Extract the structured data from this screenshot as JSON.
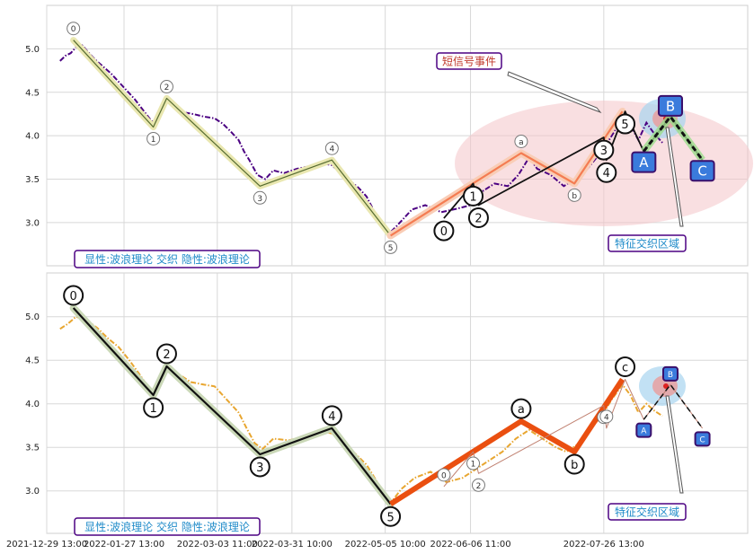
{
  "chart_data": [
    {
      "type": "line",
      "panel": "top",
      "ylim": [
        2.5,
        5.5
      ],
      "y_ticks": [
        "3.0",
        "3.5",
        "4.0",
        "4.5",
        "5.0"
      ],
      "grid": true,
      "caption": "显性:波浪理论 交织 隐性:波浪理论",
      "callouts": [
        "短信号事件",
        "特征交织区域"
      ],
      "series": [
        {
          "role": "price",
          "color": "#4b0082",
          "style": "dash-dot",
          "points": [
            [
              "2022-01-03",
              4.86
            ],
            [
              "2022-01-05",
              4.92
            ],
            [
              "2022-01-07",
              4.95
            ],
            [
              "2022-01-09",
              5.02
            ],
            [
              "2022-01-11",
              5.05
            ],
            [
              "2022-01-13",
              4.98
            ],
            [
              "2022-01-16",
              4.88
            ],
            [
              "2022-01-19",
              4.8
            ],
            [
              "2022-01-22",
              4.72
            ],
            [
              "2022-01-25",
              4.62
            ],
            [
              "2022-01-28",
              4.52
            ],
            [
              "2022-01-31",
              4.42
            ],
            [
              "2022-02-03",
              4.3
            ],
            [
              "2022-02-06",
              4.18
            ],
            [
              "2022-02-08",
              4.12
            ],
            [
              "2022-02-10",
              4.28
            ],
            [
              "2022-02-12",
              4.4
            ],
            [
              "2022-02-15",
              4.32
            ],
            [
              "2022-02-18",
              4.27
            ],
            [
              "2022-02-22",
              4.25
            ],
            [
              "2022-02-26",
              4.22
            ],
            [
              "2022-03-02",
              4.2
            ],
            [
              "2022-03-05",
              4.14
            ],
            [
              "2022-03-08",
              4.05
            ],
            [
              "2022-03-11",
              3.95
            ],
            [
              "2022-03-13",
              3.82
            ],
            [
              "2022-03-15",
              3.72
            ],
            [
              "2022-03-18",
              3.55
            ],
            [
              "2022-03-21",
              3.5
            ],
            [
              "2022-03-24",
              3.6
            ],
            [
              "2022-03-28",
              3.57
            ],
            [
              "2022-04-02",
              3.62
            ],
            [
              "2022-04-07",
              3.65
            ],
            [
              "2022-04-12",
              3.68
            ],
            [
              "2022-04-15",
              3.66
            ],
            [
              "2022-04-18",
              3.58
            ],
            [
              "2022-04-21",
              3.5
            ],
            [
              "2022-04-25",
              3.4
            ],
            [
              "2022-04-28",
              3.3
            ],
            [
              "2022-05-01",
              3.12
            ],
            [
              "2022-05-04",
              3.0
            ],
            [
              "2022-05-06",
              2.86
            ],
            [
              "2022-05-09",
              2.95
            ],
            [
              "2022-05-12",
              3.05
            ],
            [
              "2022-05-15",
              3.15
            ],
            [
              "2022-05-20",
              3.2
            ],
            [
              "2022-05-26",
              3.12
            ],
            [
              "2022-06-01",
              3.16
            ],
            [
              "2022-06-06",
              3.2
            ],
            [
              "2022-06-10",
              3.35
            ],
            [
              "2022-06-15",
              3.45
            ],
            [
              "2022-06-20",
              3.42
            ],
            [
              "2022-06-24",
              3.55
            ],
            [
              "2022-06-28",
              3.75
            ],
            [
              "2022-07-01",
              3.62
            ],
            [
              "2022-07-06",
              3.55
            ],
            [
              "2022-07-11",
              3.42
            ],
            [
              "2022-07-14",
              3.48
            ],
            [
              "2022-07-18",
              3.55
            ],
            [
              "2022-07-22",
              3.7
            ],
            [
              "2022-07-26",
              3.85
            ],
            [
              "2022-07-30",
              4.05
            ],
            [
              "2022-08-02",
              4.25
            ],
            [
              "2022-08-05",
              4.12
            ],
            [
              "2022-08-08",
              3.95
            ],
            [
              "2022-08-11",
              4.15
            ],
            [
              "2022-08-14",
              4.02
            ],
            [
              "2022-08-17",
              3.92
            ]
          ]
        },
        {
          "role": "wave",
          "color": "#556b2f",
          "points": [
            [
              "2022-01-08",
              5.1
            ],
            [
              "2022-02-07",
              4.1
            ],
            [
              "2022-02-12",
              4.43
            ],
            [
              "2022-03-19",
              3.42
            ],
            [
              "2022-04-15",
              3.72
            ],
            [
              "2022-05-07",
              2.85
            ]
          ]
        },
        {
          "role": "wave",
          "color": "#f47c52",
          "points": [
            [
              "2022-05-07",
              2.85
            ],
            [
              "2022-06-25",
              3.8
            ],
            [
              "2022-07-15",
              3.45
            ],
            [
              "2022-08-02",
              4.28
            ]
          ]
        },
        {
          "role": "wave",
          "color": "#111111",
          "points": [
            [
              "2022-05-27",
              3.05
            ],
            [
              "2022-06-07",
              3.45
            ],
            [
              "2022-06-09",
              3.2
            ],
            [
              "2022-07-26",
              3.98
            ],
            [
              "2022-07-27",
              3.72
            ],
            [
              "2022-08-03",
              4.28
            ],
            [
              "2022-08-10",
              3.82
            ],
            [
              "2022-08-20",
              4.22
            ],
            [
              "2022-09-01",
              3.72
            ]
          ]
        }
      ],
      "wave_labels": [
        {
          "label": "0",
          "x": "2022-01-08",
          "y": 5.1,
          "style": "small"
        },
        {
          "label": "1",
          "x": "2022-02-07",
          "y": 4.1,
          "style": "small"
        },
        {
          "label": "2",
          "x": "2022-02-12",
          "y": 4.43,
          "style": "small"
        },
        {
          "label": "3",
          "x": "2022-03-19",
          "y": 3.42,
          "style": "small"
        },
        {
          "label": "4",
          "x": "2022-04-15",
          "y": 3.72,
          "style": "small"
        },
        {
          "label": "5",
          "x": "2022-05-07",
          "y": 2.85,
          "style": "small"
        },
        {
          "label": "a",
          "x": "2022-06-25",
          "y": 3.8,
          "style": "small"
        },
        {
          "label": "b",
          "x": "2022-07-15",
          "y": 3.45,
          "style": "small"
        },
        {
          "label": "0",
          "x": "2022-05-27",
          "y": 3.05,
          "style": "big"
        },
        {
          "label": "1",
          "x": "2022-06-07",
          "y": 3.45,
          "style": "big"
        },
        {
          "label": "2",
          "x": "2022-06-09",
          "y": 3.2,
          "style": "big"
        },
        {
          "label": "3",
          "x": "2022-07-26",
          "y": 3.98,
          "style": "big"
        },
        {
          "label": "4",
          "x": "2022-07-27",
          "y": 3.72,
          "style": "big"
        },
        {
          "label": "5",
          "x": "2022-08-03",
          "y": 4.28,
          "style": "big"
        },
        {
          "label": "A",
          "x": "2022-08-10",
          "y": 3.82,
          "style": "box"
        },
        {
          "label": "B",
          "x": "2022-08-20",
          "y": 4.22,
          "style": "box"
        },
        {
          "label": "C",
          "x": "2022-09-01",
          "y": 3.72,
          "style": "box"
        }
      ]
    },
    {
      "type": "line",
      "panel": "bottom",
      "ylim": [
        2.5,
        5.5
      ],
      "y_ticks": [
        "3.0",
        "3.5",
        "4.0",
        "4.5",
        "5.0"
      ],
      "x_ticks": [
        "2021-12-29 13:00",
        "2022-01-27 13:00",
        "2022-03-03 11:00",
        "2022-03-31 10:00",
        "2022-05-05 10:00",
        "2022-06-06 11:00",
        "2022-07-26 13:00"
      ],
      "grid": true,
      "caption": "显性:波浪理论 交织 隐性:波浪理论",
      "callouts": [
        "特征交织区域"
      ],
      "series": [
        {
          "role": "price",
          "color": "#e8a630",
          "style": "dash-dot",
          "points": [
            [
              "2022-01-03",
              4.86
            ],
            [
              "2022-01-06",
              4.92
            ],
            [
              "2022-01-09",
              5.0
            ],
            [
              "2022-01-13",
              4.96
            ],
            [
              "2022-01-17",
              4.87
            ],
            [
              "2022-01-21",
              4.75
            ],
            [
              "2022-01-25",
              4.65
            ],
            [
              "2022-01-29",
              4.5
            ],
            [
              "2022-02-02",
              4.33
            ],
            [
              "2022-02-06",
              4.15
            ],
            [
              "2022-02-08",
              4.1
            ],
            [
              "2022-02-10",
              4.3
            ],
            [
              "2022-02-12",
              4.45
            ],
            [
              "2022-02-16",
              4.35
            ],
            [
              "2022-02-21",
              4.25
            ],
            [
              "2022-02-26",
              4.22
            ],
            [
              "2022-03-02",
              4.2
            ],
            [
              "2022-03-05",
              4.1
            ],
            [
              "2022-03-08",
              4.0
            ],
            [
              "2022-03-11",
              3.9
            ],
            [
              "2022-03-14",
              3.72
            ],
            [
              "2022-03-17",
              3.55
            ],
            [
              "2022-03-20",
              3.48
            ],
            [
              "2022-03-24",
              3.6
            ],
            [
              "2022-03-30",
              3.58
            ],
            [
              "2022-04-05",
              3.63
            ],
            [
              "2022-04-12",
              3.68
            ],
            [
              "2022-04-15",
              3.66
            ],
            [
              "2022-04-19",
              3.58
            ],
            [
              "2022-04-23",
              3.45
            ],
            [
              "2022-04-28",
              3.3
            ],
            [
              "2022-05-02",
              3.1
            ],
            [
              "2022-05-05",
              2.95
            ],
            [
              "2022-05-07",
              2.86
            ],
            [
              "2022-05-11",
              3.02
            ],
            [
              "2022-05-16",
              3.15
            ],
            [
              "2022-05-22",
              3.22
            ],
            [
              "2022-05-28",
              3.1
            ],
            [
              "2022-06-03",
              3.15
            ],
            [
              "2022-06-08",
              3.25
            ],
            [
              "2022-06-13",
              3.35
            ],
            [
              "2022-06-18",
              3.45
            ],
            [
              "2022-06-23",
              3.6
            ],
            [
              "2022-06-28",
              3.7
            ],
            [
              "2022-07-03",
              3.6
            ],
            [
              "2022-07-08",
              3.5
            ],
            [
              "2022-07-12",
              3.45
            ],
            [
              "2022-07-17",
              3.55
            ],
            [
              "2022-07-21",
              3.72
            ],
            [
              "2022-07-25",
              3.85
            ],
            [
              "2022-07-29",
              4.05
            ],
            [
              "2022-08-02",
              4.22
            ],
            [
              "2022-08-05",
              4.1
            ],
            [
              "2022-08-08",
              3.9
            ],
            [
              "2022-08-11",
              4.0
            ],
            [
              "2022-08-14",
              3.92
            ],
            [
              "2022-08-17",
              3.86
            ]
          ]
        },
        {
          "role": "wave",
          "color": "#111111",
          "points": [
            [
              "2022-01-08",
              5.1
            ],
            [
              "2022-02-07",
              4.1
            ],
            [
              "2022-02-12",
              4.43
            ],
            [
              "2022-03-19",
              3.42
            ],
            [
              "2022-04-15",
              3.72
            ],
            [
              "2022-05-07",
              2.85
            ]
          ]
        },
        {
          "role": "wave",
          "color": "#ea4f10",
          "points": [
            [
              "2022-05-07",
              2.85
            ],
            [
              "2022-06-25",
              3.8
            ],
            [
              "2022-07-15",
              3.45
            ],
            [
              "2022-08-02",
              4.28
            ]
          ]
        },
        {
          "role": "wave",
          "color": "#c08070",
          "points": [
            [
              "2022-05-27",
              3.05
            ],
            [
              "2022-06-07",
              3.45
            ],
            [
              "2022-06-09",
              3.2
            ],
            [
              "2022-07-26",
              3.98
            ],
            [
              "2022-07-27",
              3.72
            ],
            [
              "2022-08-03",
              4.28
            ],
            [
              "2022-08-10",
              3.82
            ],
            [
              "2022-08-20",
              4.22
            ],
            [
              "2022-09-01",
              3.72
            ]
          ]
        }
      ],
      "wave_labels": [
        {
          "label": "0",
          "x": "2022-01-08",
          "y": 5.1,
          "style": "big"
        },
        {
          "label": "1",
          "x": "2022-02-07",
          "y": 4.1,
          "style": "big"
        },
        {
          "label": "2",
          "x": "2022-02-12",
          "y": 4.43,
          "style": "big"
        },
        {
          "label": "3",
          "x": "2022-03-19",
          "y": 3.42,
          "style": "big"
        },
        {
          "label": "4",
          "x": "2022-04-15",
          "y": 3.72,
          "style": "big"
        },
        {
          "label": "5",
          "x": "2022-05-07",
          "y": 2.85,
          "style": "big"
        },
        {
          "label": "a",
          "x": "2022-06-25",
          "y": 3.8,
          "style": "big"
        },
        {
          "label": "b",
          "x": "2022-07-15",
          "y": 3.45,
          "style": "big"
        },
        {
          "label": "c",
          "x": "2022-08-03",
          "y": 4.28,
          "style": "big"
        },
        {
          "label": "0",
          "x": "2022-05-27",
          "y": 3.05,
          "style": "small"
        },
        {
          "label": "1",
          "x": "2022-06-07",
          "y": 3.45,
          "style": "small"
        },
        {
          "label": "2",
          "x": "2022-06-09",
          "y": 3.2,
          "style": "small"
        },
        {
          "label": "3",
          "x": "2022-07-26",
          "y": 3.98,
          "style": "small"
        },
        {
          "label": "4",
          "x": "2022-07-27",
          "y": 3.72,
          "style": "small"
        },
        {
          "label": "A",
          "x": "2022-08-10",
          "y": 3.82,
          "style": "box-small"
        },
        {
          "label": "B",
          "x": "2022-08-20",
          "y": 4.22,
          "style": "box-small"
        },
        {
          "label": "C",
          "x": "2022-09-01",
          "y": 3.72,
          "style": "box-small"
        }
      ]
    }
  ]
}
